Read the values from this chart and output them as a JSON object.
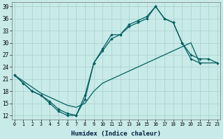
{
  "xlabel": "Humidex (Indice chaleur)",
  "bg_color": "#c8eae8",
  "grid_color": "#a8d0ce",
  "line_color": "#006060",
  "xlim": [
    -0.3,
    23.3
  ],
  "ylim": [
    11,
    40
  ],
  "yticks": [
    12,
    15,
    18,
    21,
    24,
    27,
    30,
    33,
    36,
    39
  ],
  "xticks": [
    0,
    1,
    2,
    3,
    4,
    5,
    6,
    7,
    8,
    9,
    10,
    11,
    12,
    13,
    14,
    15,
    16,
    17,
    18,
    19,
    20,
    21,
    22,
    23
  ],
  "s1_x": [
    0,
    1,
    2,
    3,
    4,
    5,
    6,
    7,
    8,
    9,
    10,
    11,
    12,
    13,
    14,
    15,
    16,
    17,
    18,
    19,
    20,
    21
  ],
  "s1_y": [
    22,
    20,
    18,
    17,
    15,
    13,
    12,
    12,
    17,
    25,
    28,
    31,
    32,
    34,
    35,
    36,
    39,
    36,
    35,
    30,
    26,
    25
  ],
  "s2_x": [
    0,
    1,
    2,
    3,
    4,
    5,
    6,
    7,
    8,
    9,
    10,
    11,
    12,
    13,
    14,
    15,
    16,
    17,
    18,
    19,
    20,
    21,
    22,
    23
  ],
  "s2_y": [
    22,
    20,
    18,
    17,
    15.5,
    13.5,
    12.5,
    12,
    16,
    25,
    28.5,
    32,
    32,
    34.5,
    35.5,
    36.5,
    39,
    36,
    35,
    30,
    27,
    26,
    26,
    25
  ],
  "s3_x": [
    0,
    1,
    2,
    3,
    4,
    5,
    6,
    7,
    8,
    9,
    10,
    11,
    12,
    13,
    14,
    15,
    16,
    17,
    18,
    19,
    20,
    21,
    22,
    23
  ],
  "s3_y": [
    22,
    20.5,
    19,
    17.5,
    16.5,
    15.5,
    14.5,
    14,
    15,
    18,
    20,
    21,
    22,
    23,
    24,
    25,
    26,
    27,
    28,
    29,
    30,
    25,
    25,
    25
  ]
}
